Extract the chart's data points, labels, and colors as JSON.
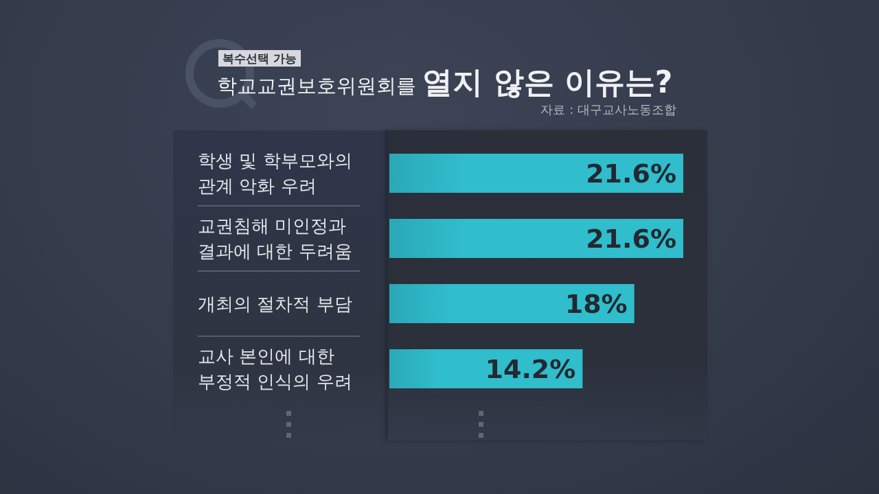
{
  "chart_data": {
    "type": "bar",
    "orientation": "horizontal",
    "title": "학교교권보호위원회를 열지 않은 이유는?",
    "subtitle": "복수선택 가능",
    "annotations": [
      "자료 : 대구교사노동조합"
    ],
    "categories": [
      "학생 및 학부모와의\n관계 악화 우려",
      "교권침해 미인정과\n결과에 대한 두려움",
      "개최의 절차적 부담",
      "교사 본인에 대한\n부정적 인식의 우려"
    ],
    "values": [
      21.6,
      21.6,
      18,
      14.2
    ],
    "value_labels": [
      "21.6%",
      "21.6%",
      "18%",
      "14.2%"
    ],
    "color": "#30bdcc",
    "tick_labels": "y"
  }
}
